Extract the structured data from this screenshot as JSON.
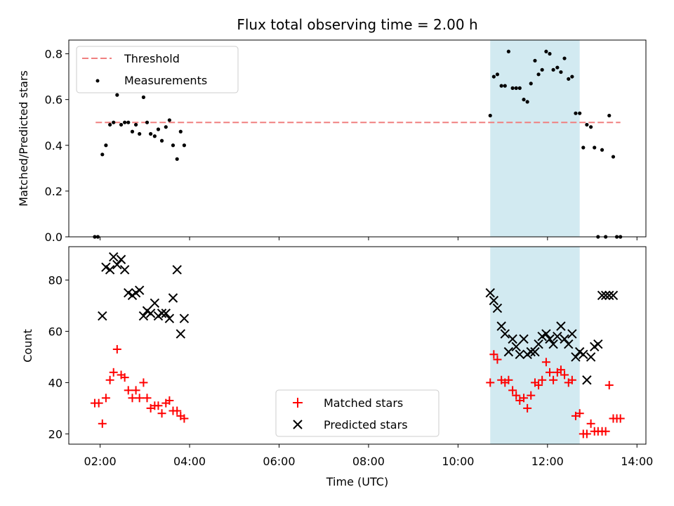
{
  "chart_data": {
    "type": "scatter",
    "title": "Flux total observing time = 2.00 h",
    "xlabel": "Time (UTC)",
    "x_ticks": [
      "02:00",
      "04:00",
      "06:00",
      "08:00",
      "10:00",
      "12:00",
      "14:00"
    ],
    "x_tick_hours": [
      2,
      4,
      6,
      8,
      10,
      12,
      14
    ],
    "xlim": [
      1.3,
      14.2
    ],
    "shaded_interval": [
      10.72,
      12.72
    ],
    "shade_color": "#add8e6",
    "top": {
      "ylabel": "Matched/Predicted stars",
      "ylim": [
        0,
        0.86
      ],
      "y_ticks": [
        "0.0",
        "0.2",
        "0.4",
        "0.6",
        "0.8"
      ],
      "y_tick_values": [
        0,
        0.2,
        0.4,
        0.6,
        0.8
      ],
      "threshold": {
        "name": "Threshold",
        "value": 0.5,
        "x_range": [
          1.9,
          13.63
        ],
        "color": "#f08080"
      },
      "measurements": {
        "name": "Measurements",
        "color": "#000000",
        "x": [
          1.88,
          1.95,
          2.05,
          2.13,
          2.22,
          2.3,
          2.38,
          2.47,
          2.55,
          2.63,
          2.72,
          2.8,
          2.88,
          2.97,
          3.05,
          3.13,
          3.22,
          3.3,
          3.38,
          3.47,
          3.55,
          3.63,
          3.72,
          3.8,
          3.88,
          10.72,
          10.8,
          10.88,
          10.97,
          11.05,
          11.13,
          11.22,
          11.3,
          11.38,
          11.47,
          11.55,
          11.63,
          11.72,
          11.8,
          11.88,
          11.97,
          12.05,
          12.13,
          12.22,
          12.3,
          12.38,
          12.47,
          12.55,
          12.63,
          12.72,
          12.8,
          12.88,
          12.97,
          13.05,
          13.13,
          13.22,
          13.3,
          13.38,
          13.47,
          13.55,
          13.63
        ],
        "y": [
          0.0,
          0.0,
          0.36,
          0.4,
          0.49,
          0.5,
          0.62,
          0.49,
          0.5,
          0.5,
          0.46,
          0.49,
          0.45,
          0.61,
          0.5,
          0.45,
          0.44,
          0.47,
          0.42,
          0.48,
          0.51,
          0.4,
          0.34,
          0.46,
          0.4,
          0.53,
          0.7,
          0.71,
          0.66,
          0.66,
          0.81,
          0.65,
          0.65,
          0.65,
          0.6,
          0.59,
          0.67,
          0.77,
          0.71,
          0.73,
          0.81,
          0.8,
          0.73,
          0.74,
          0.72,
          0.78,
          0.69,
          0.7,
          0.54,
          0.54,
          0.39,
          0.49,
          0.48,
          0.39,
          0.0,
          0.38,
          0.0,
          0.53,
          0.35,
          0.0,
          0.0
        ]
      }
    },
    "bottom": {
      "ylabel": "Count",
      "ylim": [
        16,
        93
      ],
      "y_ticks": [
        "20",
        "40",
        "60",
        "80"
      ],
      "y_tick_values": [
        20,
        40,
        60,
        80
      ],
      "matched": {
        "name": "Matched stars",
        "color": "#ff0000",
        "x": [
          1.88,
          1.97,
          2.05,
          2.13,
          2.22,
          2.3,
          2.38,
          2.47,
          2.55,
          2.63,
          2.72,
          2.8,
          2.88,
          2.97,
          3.05,
          3.13,
          3.22,
          3.3,
          3.38,
          3.47,
          3.55,
          3.63,
          3.72,
          3.8,
          3.88,
          10.72,
          10.8,
          10.88,
          10.97,
          11.05,
          11.13,
          11.22,
          11.3,
          11.38,
          11.47,
          11.55,
          11.63,
          11.72,
          11.8,
          11.88,
          11.97,
          12.05,
          12.13,
          12.22,
          12.3,
          12.38,
          12.47,
          12.55,
          12.63,
          12.72,
          12.8,
          12.88,
          12.97,
          13.05,
          13.13,
          13.22,
          13.3,
          13.38,
          13.47,
          13.55,
          13.63
        ],
        "y": [
          32,
          32,
          24,
          34,
          41,
          44,
          53,
          43,
          42,
          37,
          34,
          37,
          34,
          40,
          34,
          30,
          31,
          31,
          28,
          32,
          33,
          29,
          29,
          27,
          26,
          40,
          51,
          49,
          41,
          40,
          41,
          37,
          35,
          33,
          34,
          30,
          35,
          40,
          39,
          41,
          48,
          44,
          41,
          44,
          45,
          43,
          40,
          41,
          27,
          28,
          20,
          20,
          24,
          21,
          21,
          21,
          21,
          39,
          26,
          26,
          26
        ]
      },
      "predicted": {
        "name": "Predicted stars",
        "color": "#000000",
        "x": [
          2.05,
          2.13,
          2.22,
          2.3,
          2.38,
          2.47,
          2.55,
          2.63,
          2.72,
          2.8,
          2.88,
          2.97,
          3.05,
          3.13,
          3.22,
          3.3,
          3.38,
          3.47,
          3.55,
          3.63,
          3.72,
          3.8,
          3.88,
          10.72,
          10.8,
          10.88,
          10.97,
          11.05,
          11.13,
          11.22,
          11.3,
          11.38,
          11.47,
          11.55,
          11.63,
          11.72,
          11.8,
          11.88,
          11.97,
          12.05,
          12.13,
          12.22,
          12.3,
          12.38,
          12.47,
          12.55,
          12.63,
          12.72,
          12.8,
          12.88,
          12.97,
          13.05,
          13.13,
          13.22,
          13.3,
          13.38,
          13.47
        ],
        "y": [
          66,
          85,
          84,
          89,
          86,
          88,
          84,
          75,
          74,
          75,
          76,
          66,
          68,
          67,
          71,
          66,
          67,
          67,
          65,
          73,
          84,
          59,
          65,
          75,
          72,
          69,
          62,
          59,
          52,
          57,
          54,
          51,
          57,
          51,
          52,
          52,
          55,
          58,
          59,
          57,
          55,
          58,
          62,
          57,
          55,
          59,
          50,
          52,
          51,
          41,
          50,
          54,
          55,
          74,
          74,
          74,
          74
        ]
      },
      "legend_position": "lower center"
    },
    "top_legend_position": "upper left"
  }
}
